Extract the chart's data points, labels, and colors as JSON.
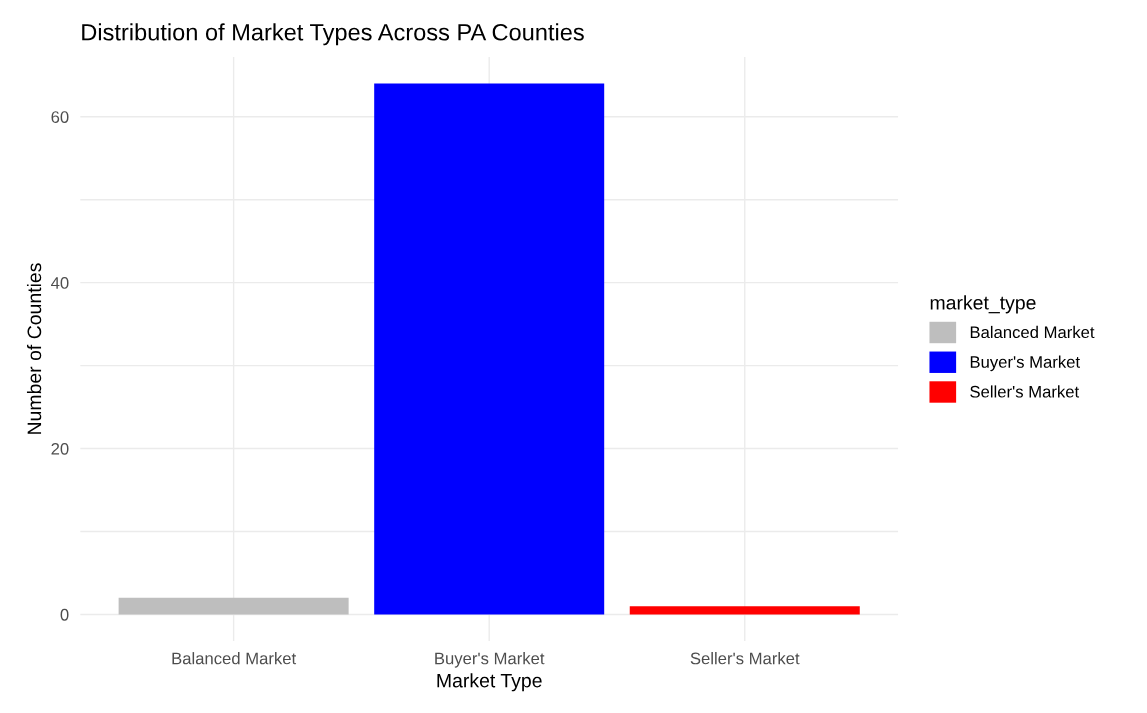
{
  "chart_data": {
    "type": "bar",
    "title": "Distribution of Market Types Across PA Counties",
    "xlabel": "Market Type",
    "ylabel": "Number of Counties",
    "legend_title": "market_type",
    "categories": [
      "Balanced Market",
      "Buyer's Market",
      "Seller's Market"
    ],
    "series": [
      {
        "name": "Balanced Market",
        "color": "#bebebe",
        "values": [
          2,
          null,
          null
        ]
      },
      {
        "name": "Buyer's Market",
        "color": "#0000ff",
        "values": [
          null,
          64,
          null
        ]
      },
      {
        "name": "Seller's Market",
        "color": "#ff0000",
        "values": [
          null,
          null,
          1
        ]
      }
    ],
    "ylim": [
      -3.2,
      67.2
    ],
    "yticks": [
      0,
      {
        "value": 10,
        "label": null
      },
      20,
      {
        "value": 30,
        "label": null
      },
      40,
      {
        "value": 50,
        "label": null
      },
      60
    ],
    "grid": true,
    "legend": "right"
  }
}
